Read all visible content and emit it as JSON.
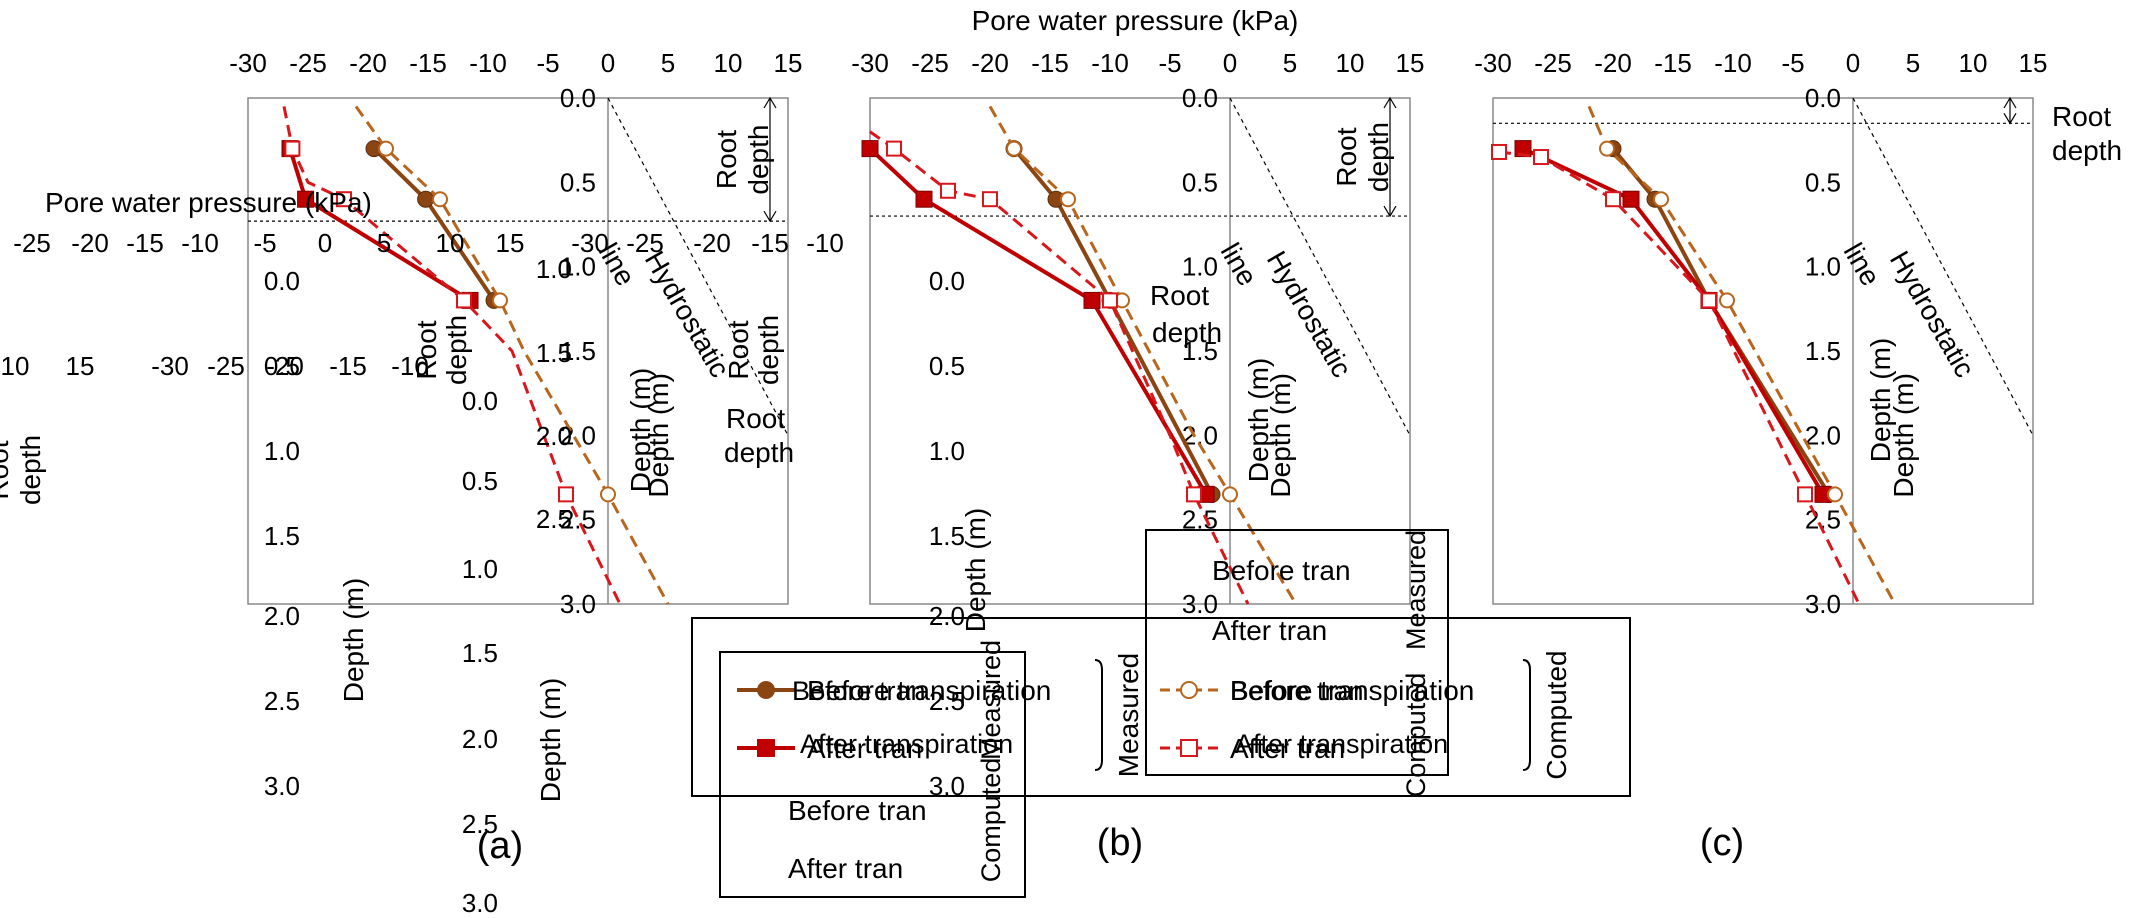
{
  "colors": {
    "measured": "#8B4513",
    "before_measured": "#A0522D",
    "after": "#C00000",
    "before_computed": "#B8651E",
    "after_computed": "#D9161C",
    "hydrostatic": "#000000"
  },
  "figure": {
    "x_title": "Pore water pressure (kPa)",
    "y_title": "Depth (m)",
    "root_label_1": "Root",
    "root_label_2": "depth",
    "hydro_label_1": "Hydrostatic",
    "hydro_label_2": "line",
    "stray_xlabel": "Pore water pressure (kPa)"
  },
  "legend": {
    "before": "Before transpiration",
    "after": "After transpiration",
    "measured": "Measured",
    "computed": "Computed",
    "before_short": "Before tran",
    "after_short": "After tran"
  },
  "chart_data": [
    {
      "type": "line",
      "panel": "(a)",
      "x_axis": {
        "label": "Pore water pressure (kPa)",
        "range": [
          -30,
          15
        ],
        "ticks": [
          -30,
          -25,
          -20,
          -15,
          -10,
          -5,
          0,
          5,
          10,
          15
        ]
      },
      "y_axis": {
        "label": "Depth (m)",
        "range": [
          0,
          3
        ],
        "ticks": [
          "0.0",
          "0.5",
          "1.0",
          "1.5",
          "2.0",
          "2.5",
          "3.0"
        ],
        "inverted": true
      },
      "root_depth": 0.73,
      "series": [
        {
          "name": "Before transpiration",
          "group": "Measured",
          "style": "solid-circle",
          "x": [
            -19.5,
            -15.2,
            -9.5
          ],
          "y": [
            0.3,
            0.6,
            1.2
          ]
        },
        {
          "name": "After transpiration",
          "group": "Measured",
          "style": "solid-square",
          "x": [
            -26.5,
            -25.2,
            -11.5
          ],
          "y": [
            0.3,
            0.6,
            1.2
          ]
        },
        {
          "name": "Before transpiration",
          "group": "Computed",
          "style": "dashed-open-circle",
          "x": [
            -21,
            -18.5,
            -14,
            -9,
            -7,
            0,
            5
          ],
          "y": [
            0.05,
            0.3,
            0.6,
            1.2,
            1.5,
            2.35,
            3.0
          ]
        },
        {
          "name": "After transpiration",
          "group": "Computed",
          "style": "dashed-open-square",
          "x": [
            -27,
            -26.3,
            -25,
            -22,
            -12,
            -8,
            -3.5,
            1
          ],
          "y": [
            0.05,
            0.3,
            0.5,
            0.6,
            1.2,
            1.5,
            2.35,
            3.0
          ]
        }
      ]
    },
    {
      "type": "line",
      "panel": "(b)",
      "x_axis": {
        "label": "Pore water pressure (kPa)",
        "range": [
          -30,
          15
        ],
        "ticks": [
          -30,
          -25,
          -20,
          -15,
          -10,
          -5,
          0,
          5,
          10,
          15
        ]
      },
      "y_axis": {
        "label": "Depth (m)",
        "range": [
          0,
          3
        ],
        "ticks": [
          "0.0",
          "0.5",
          "1.0",
          "1.5",
          "2.0",
          "2.5",
          "3.0"
        ],
        "inverted": true
      },
      "root_depth": 0.7,
      "series": [
        {
          "name": "Before transpiration",
          "group": "Measured",
          "style": "solid-circle",
          "x": [
            -18,
            -14.5,
            -10,
            -1.5
          ],
          "y": [
            0.3,
            0.6,
            1.2,
            2.35
          ]
        },
        {
          "name": "After transpiration",
          "group": "Measured",
          "style": "solid-square",
          "x": [
            -30,
            -25.5,
            -11.5,
            -2
          ],
          "y": [
            0.3,
            0.6,
            1.2,
            2.35
          ]
        },
        {
          "name": "Before transpiration",
          "group": "Computed",
          "style": "dashed-open-circle",
          "x": [
            -20,
            -18,
            -13.5,
            -9,
            -3,
            0,
            5.5
          ],
          "y": [
            0.05,
            0.3,
            0.6,
            1.2,
            2.0,
            2.35,
            3.0
          ]
        },
        {
          "name": "After transpiration",
          "group": "Computed",
          "style": "dashed-open-square",
          "x": [
            -30,
            -28,
            -23.5,
            -20,
            -10,
            -5,
            -3,
            1.5
          ],
          "y": [
            0.2,
            0.3,
            0.55,
            0.6,
            1.2,
            2.0,
            2.35,
            3.0
          ]
        }
      ]
    },
    {
      "type": "line",
      "panel": "(c)",
      "x_axis": {
        "label": "Pore water pressure (kPa)",
        "range": [
          -30,
          15
        ],
        "ticks": [
          -30,
          -25,
          -20,
          -15,
          -10,
          -5,
          0,
          5,
          10,
          15
        ]
      },
      "y_axis": {
        "label": "Depth (m)",
        "range": [
          0,
          3
        ],
        "ticks": [
          "0.0",
          "0.5",
          "1.0",
          "1.5",
          "2.0",
          "2.5",
          "3.0"
        ],
        "inverted": true
      },
      "root_depth": 0.15,
      "series": [
        {
          "name": "Before transpiration",
          "group": "Measured",
          "style": "solid-circle",
          "x": [
            -20,
            -16.5,
            -12,
            -2
          ],
          "y": [
            0.3,
            0.6,
            1.2,
            2.35
          ]
        },
        {
          "name": "After transpiration",
          "group": "Measured",
          "style": "solid-square",
          "x": [
            -27.5,
            -18.5,
            -12,
            -2.5
          ],
          "y": [
            0.3,
            0.6,
            1.2,
            2.35
          ]
        },
        {
          "name": "Before transpiration",
          "group": "Computed",
          "style": "dashed-open-circle",
          "x": [
            -22,
            -20.5,
            -16,
            -10.5,
            -1.5,
            3.5
          ],
          "y": [
            0.05,
            0.3,
            0.6,
            1.2,
            2.35,
            3.0
          ]
        },
        {
          "name": "After transpiration",
          "group": "Computed",
          "style": "dashed-open-square",
          "x": [
            -29.5,
            -26,
            -20,
            -12,
            -4,
            0.5
          ],
          "y": [
            0.32,
            0.35,
            0.6,
            1.2,
            2.35,
            3.0
          ]
        }
      ]
    }
  ],
  "ghost": {
    "top_ticks": [
      "-25",
      "-20",
      "-15",
      "-10",
      "-5",
      "0",
      "5",
      "10",
      "15",
      "-30",
      "-25",
      "-20",
      "-15",
      "-10"
    ],
    "left_ticks": [
      "10",
      "15",
      "-30",
      "-25",
      "-20",
      "-15",
      "-10"
    ],
    "depth_ticks_a": [
      "0.0",
      "0.5",
      "1.0",
      "1.5",
      "2.0",
      "2.5",
      "3.0"
    ],
    "depth_ticks_b": [
      "0.0",
      "0.5",
      "1.0",
      "1.5",
      "2.0",
      "2.5",
      "3.0"
    ],
    "depth_ticks_c": [
      "0.0",
      "0.5",
      "1.0",
      "1.5",
      "2.0",
      "2.5",
      "3.0"
    ],
    "depth_ticks_d": [
      "1.0",
      "1.5",
      "2.0",
      "2.5"
    ]
  }
}
